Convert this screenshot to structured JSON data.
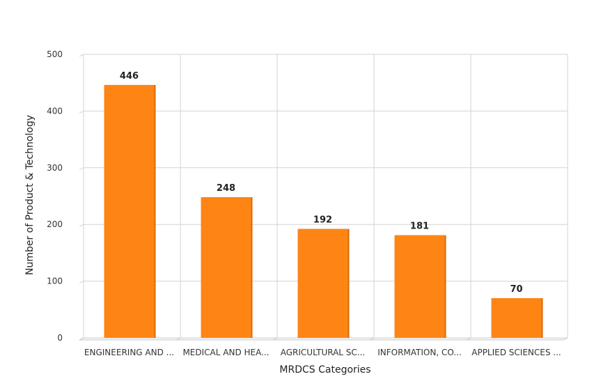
{
  "chart_data": {
    "type": "bar",
    "categories": [
      "ENGINEERING AND ...",
      "MEDICAL AND HEA...",
      "AGRICULTURAL SC...",
      "INFORMATION, CO...",
      "APPLIED SCIENCES ..."
    ],
    "values": [
      446,
      248,
      192,
      181,
      70
    ],
    "xlabel": "MRDCS Categories",
    "ylabel": "Number of Product & Technology",
    "ylim": [
      0,
      500
    ],
    "yticks": [
      0,
      100,
      200,
      300,
      400,
      500
    ],
    "grid": true,
    "bar_color": "#fe8514",
    "bar_side_color": "#d86a0a"
  }
}
